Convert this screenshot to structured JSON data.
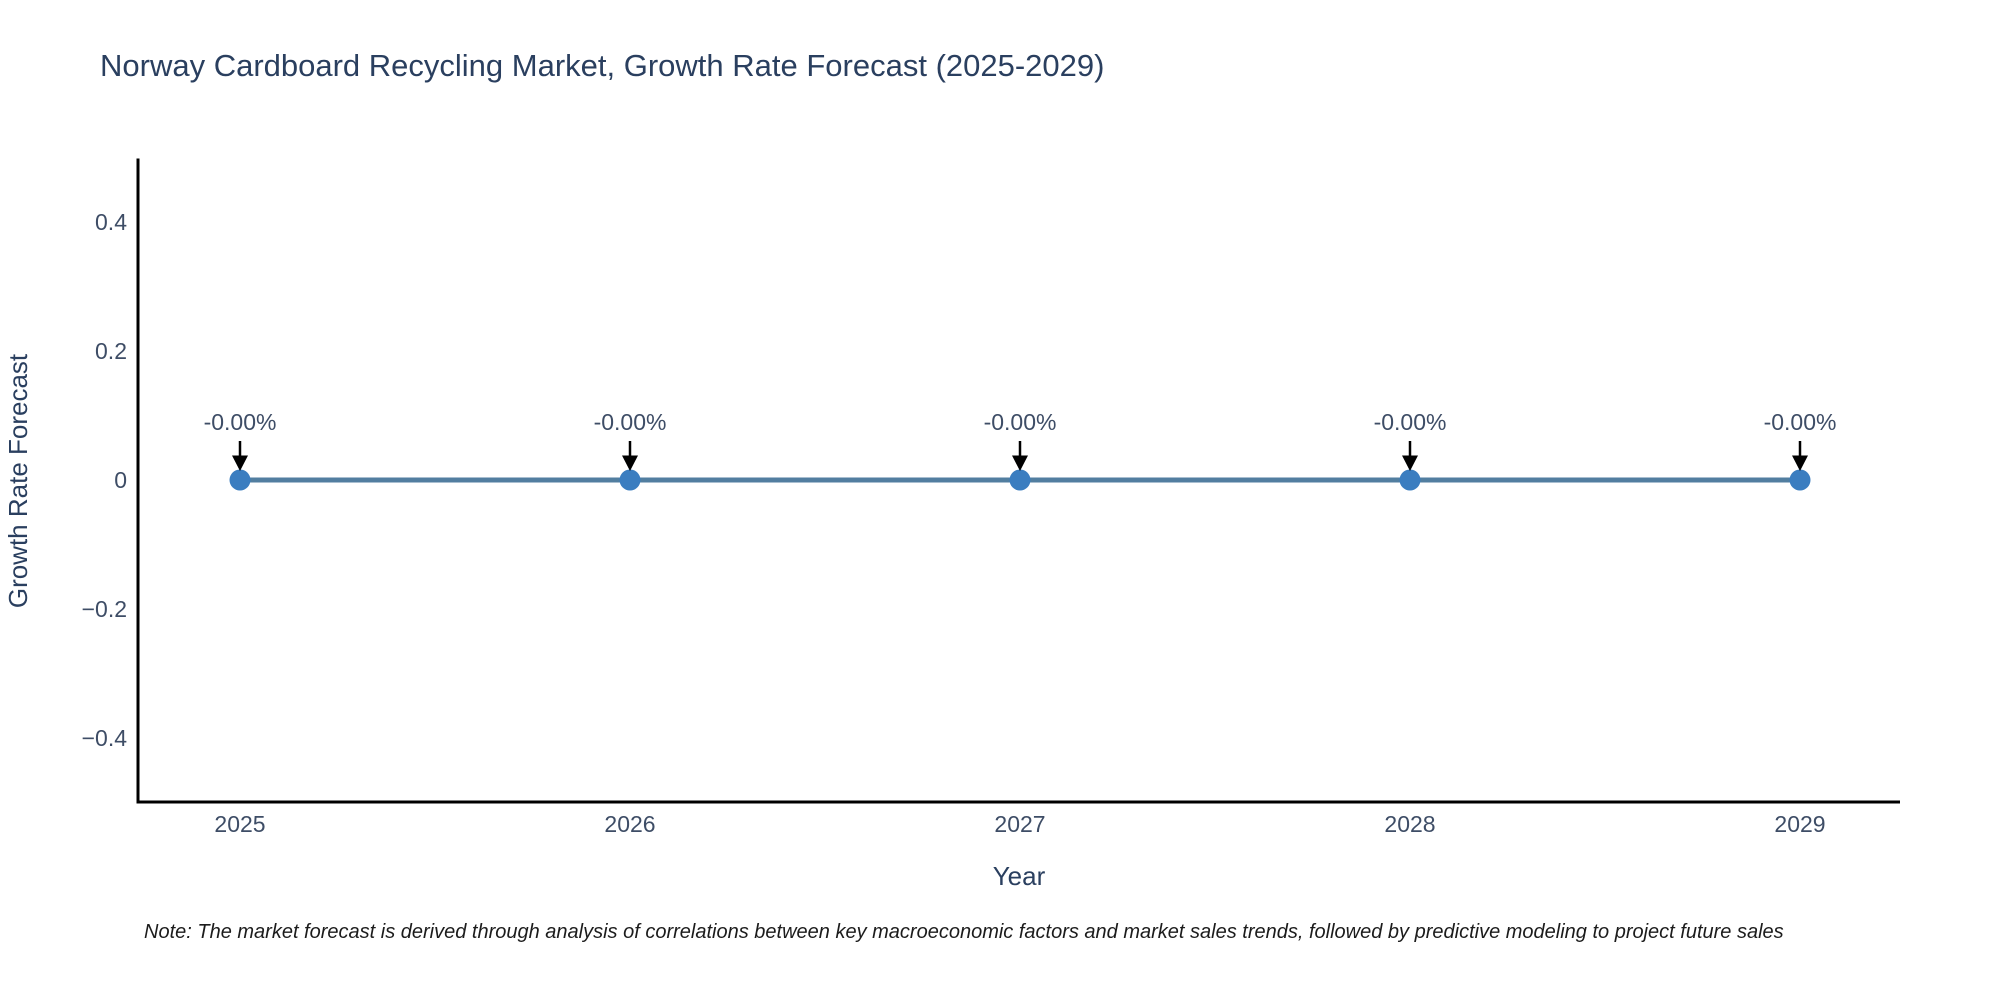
{
  "page": {
    "background": "#ffffff"
  },
  "chart_data": {
    "type": "line",
    "title": "Norway Cardboard Recycling Market, Growth Rate Forecast (2025-2029)",
    "xlabel": "Year",
    "ylabel": "Growth Rate Forecast",
    "categories": [
      "2025",
      "2026",
      "2027",
      "2028",
      "2029"
    ],
    "series": [
      {
        "name": "Growth Rate Forecast",
        "values": [
          0,
          0,
          0,
          0,
          0
        ],
        "point_labels": [
          "-0.00%",
          "-0.00%",
          "-0.00%",
          "-0.00%",
          "-0.00%"
        ]
      }
    ],
    "ylim": [
      -0.5,
      0.5
    ],
    "yticks": {
      "values": [
        0.4,
        0.2,
        0,
        -0.2,
        -0.4
      ],
      "labels": [
        "0.4",
        "0.2",
        "0",
        "−0.2",
        "−0.4"
      ]
    },
    "grid": false,
    "legend_position": "none",
    "markers": true,
    "annotation_arrows": true,
    "colors": {
      "line": "#527ea0",
      "marker": "#3a7dc0",
      "axis_line": "#000000",
      "title_text": "#2a3f5f",
      "tick_text": "#3e4d66",
      "annotation_arrow": "#000000",
      "note_text": "#1c1c1c",
      "background": "#ffffff"
    }
  },
  "note": {
    "text": "Note: The market forecast is derived through analysis of correlations between key macroeconomic factors and market sales trends, followed by predictive modeling to project future sales"
  }
}
